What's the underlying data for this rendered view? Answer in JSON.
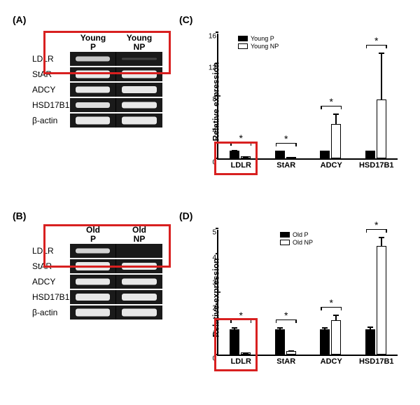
{
  "labels": {
    "panel_a": "(A)",
    "panel_b": "(B)",
    "panel_c": "(C)",
    "panel_d": "(D)"
  },
  "gel_a": {
    "headers": [
      "Young\nP",
      "Young\nNP"
    ],
    "rows": [
      {
        "label": "LDLR",
        "bands": [
          {
            "intensity": 0.7,
            "height": 7
          },
          {
            "intensity": 0.05,
            "height": 3
          }
        ]
      },
      {
        "label": "StAR",
        "bands": [
          {
            "intensity": 0.95,
            "height": 11
          },
          {
            "intensity": 0.9,
            "height": 11
          }
        ]
      },
      {
        "label": "ADCY",
        "bands": [
          {
            "intensity": 0.85,
            "height": 9
          },
          {
            "intensity": 0.9,
            "height": 10
          }
        ]
      },
      {
        "label": "HSD17B1",
        "bands": [
          {
            "intensity": 0.8,
            "height": 8
          },
          {
            "intensity": 0.85,
            "height": 9
          }
        ]
      },
      {
        "label": "β-actin",
        "bands": [
          {
            "intensity": 0.9,
            "height": 11
          },
          {
            "intensity": 0.9,
            "height": 11
          }
        ]
      }
    ]
  },
  "gel_b": {
    "headers": [
      "Old\nP",
      "Old\nNP"
    ],
    "rows": [
      {
        "label": "LDLR",
        "bands": [
          {
            "intensity": 0.75,
            "height": 7
          },
          {
            "intensity": 0.02,
            "height": 2
          }
        ]
      },
      {
        "label": "StAR",
        "bands": [
          {
            "intensity": 0.95,
            "height": 12
          },
          {
            "intensity": 0.9,
            "height": 10
          }
        ]
      },
      {
        "label": "ADCY",
        "bands": [
          {
            "intensity": 0.85,
            "height": 9
          },
          {
            "intensity": 0.85,
            "height": 9
          }
        ]
      },
      {
        "label": "HSD17B1",
        "bands": [
          {
            "intensity": 0.9,
            "height": 10
          },
          {
            "intensity": 0.9,
            "height": 10
          }
        ]
      },
      {
        "label": "β-actin",
        "bands": [
          {
            "intensity": 0.85,
            "height": 11
          },
          {
            "intensity": 0.85,
            "height": 11
          }
        ]
      }
    ]
  },
  "chart_c": {
    "y_label": "Relative expression",
    "y_max": 16,
    "y_ticks": [
      0,
      4,
      8,
      12,
      16
    ],
    "legend": [
      "Young P",
      "Young NP"
    ],
    "colors": {
      "p": "#000000",
      "np": "#ffffff"
    },
    "groups": [
      {
        "name": "LDLR",
        "p": {
          "val": 1.0,
          "err": 0.15
        },
        "np": {
          "val": 0.25,
          "err": 0.1
        },
        "sig": true
      },
      {
        "name": "StAR",
        "p": {
          "val": 1.0,
          "err": 0.1
        },
        "np": {
          "val": 0.2,
          "err": 0.08
        },
        "sig": true
      },
      {
        "name": "ADCY",
        "p": {
          "val": 1.0,
          "err": 0.1
        },
        "np": {
          "val": 4.4,
          "err": 1.4
        },
        "sig": true
      },
      {
        "name": "HSD17B1",
        "p": {
          "val": 1.0,
          "err": 0.1
        },
        "np": {
          "val": 7.5,
          "err": 6.0
        },
        "sig": true
      }
    ]
  },
  "chart_d": {
    "y_label": "Relative expression",
    "y_max": 5,
    "y_ticks": [
      0,
      1,
      2,
      3,
      4,
      5
    ],
    "legend": [
      "Old P",
      "Old NP"
    ],
    "colors": {
      "p": "#000000",
      "np": "#ffffff"
    },
    "groups": [
      {
        "name": "LDLR",
        "p": {
          "val": 1.0,
          "err": 0.1
        },
        "np": {
          "val": 0.08,
          "err": 0.03
        },
        "sig": true
      },
      {
        "name": "StAR",
        "p": {
          "val": 1.0,
          "err": 0.12
        },
        "np": {
          "val": 0.15,
          "err": 0.05
        },
        "sig": true
      },
      {
        "name": "ADCY",
        "p": {
          "val": 1.0,
          "err": 0.1
        },
        "np": {
          "val": 1.35,
          "err": 0.25
        },
        "sig": true
      },
      {
        "name": "HSD17B1",
        "p": {
          "val": 1.0,
          "err": 0.15
        },
        "np": {
          "val": 4.3,
          "err": 0.4
        },
        "sig": true
      }
    ]
  },
  "highlight_color": "#d82020"
}
